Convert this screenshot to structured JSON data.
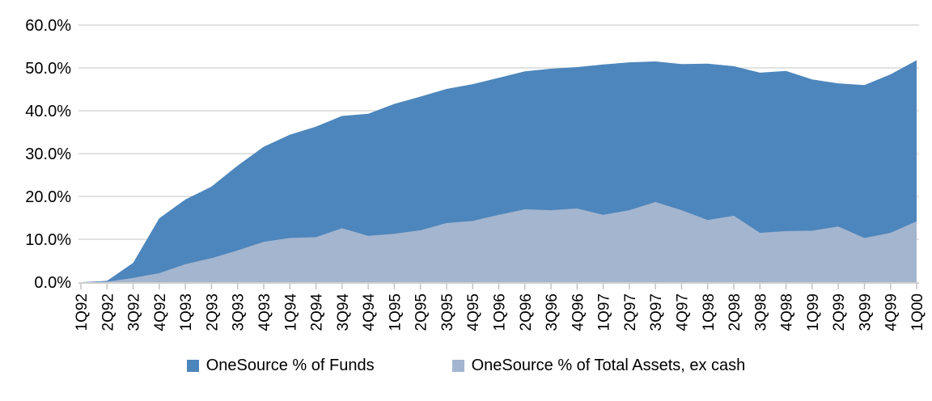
{
  "chart_data": {
    "type": "area",
    "title": "",
    "xlabel": "",
    "ylabel": "",
    "legend_position": "bottom",
    "grid": true,
    "overlapping": true,
    "categories": [
      "1Q92",
      "2Q92",
      "3Q92",
      "4Q92",
      "1Q93",
      "2Q93",
      "3Q93",
      "4Q93",
      "1Q94",
      "2Q94",
      "3Q94",
      "4Q94",
      "1Q95",
      "2Q95",
      "3Q95",
      "4Q95",
      "1Q96",
      "2Q96",
      "3Q96",
      "4Q96",
      "1Q97",
      "2Q97",
      "3Q97",
      "4Q97",
      "1Q98",
      "2Q98",
      "3Q98",
      "4Q98",
      "1Q99",
      "2Q99",
      "3Q99",
      "4Q99",
      "1Q00"
    ],
    "series": [
      {
        "name": "OneSource % of Funds",
        "color": "#4D86BC",
        "values": [
          0.0,
          0.3,
          4.5,
          14.9,
          19.3,
          22.3,
          27.2,
          31.6,
          34.4,
          36.3,
          38.8,
          39.3,
          41.6,
          43.3,
          45.1,
          46.2,
          47.7,
          49.2,
          49.8,
          50.2,
          50.8,
          51.3,
          51.5,
          50.9,
          51.0,
          50.4,
          48.9,
          49.3,
          47.3,
          46.4,
          46.0,
          48.5,
          51.8
        ]
      },
      {
        "name": "OneSource % of Total Assets, ex cash",
        "color": "#A4B5CF",
        "values": [
          0.0,
          0.1,
          1.0,
          2.1,
          4.2,
          5.6,
          7.4,
          9.4,
          10.3,
          10.5,
          12.6,
          10.8,
          11.3,
          12.1,
          13.8,
          14.3,
          15.7,
          17.0,
          16.8,
          17.2,
          15.7,
          16.8,
          18.7,
          16.8,
          14.5,
          15.5,
          11.5,
          11.9,
          12.0,
          13.0,
          10.3,
          11.5,
          14.2
        ]
      }
    ],
    "y_axis": {
      "min": 0,
      "max": 60,
      "tick_step": 10,
      "tick_labels": [
        "0.0%",
        "10.0%",
        "20.0%",
        "30.0%",
        "40.0%",
        "50.0%",
        "60.0%"
      ]
    }
  },
  "style_colors": {
    "gridline": "#D9D9D9",
    "axis_line": "#BFBFBF",
    "tick": "#BFBFBF",
    "label_text": "#000000",
    "background": "#FFFFFF"
  }
}
